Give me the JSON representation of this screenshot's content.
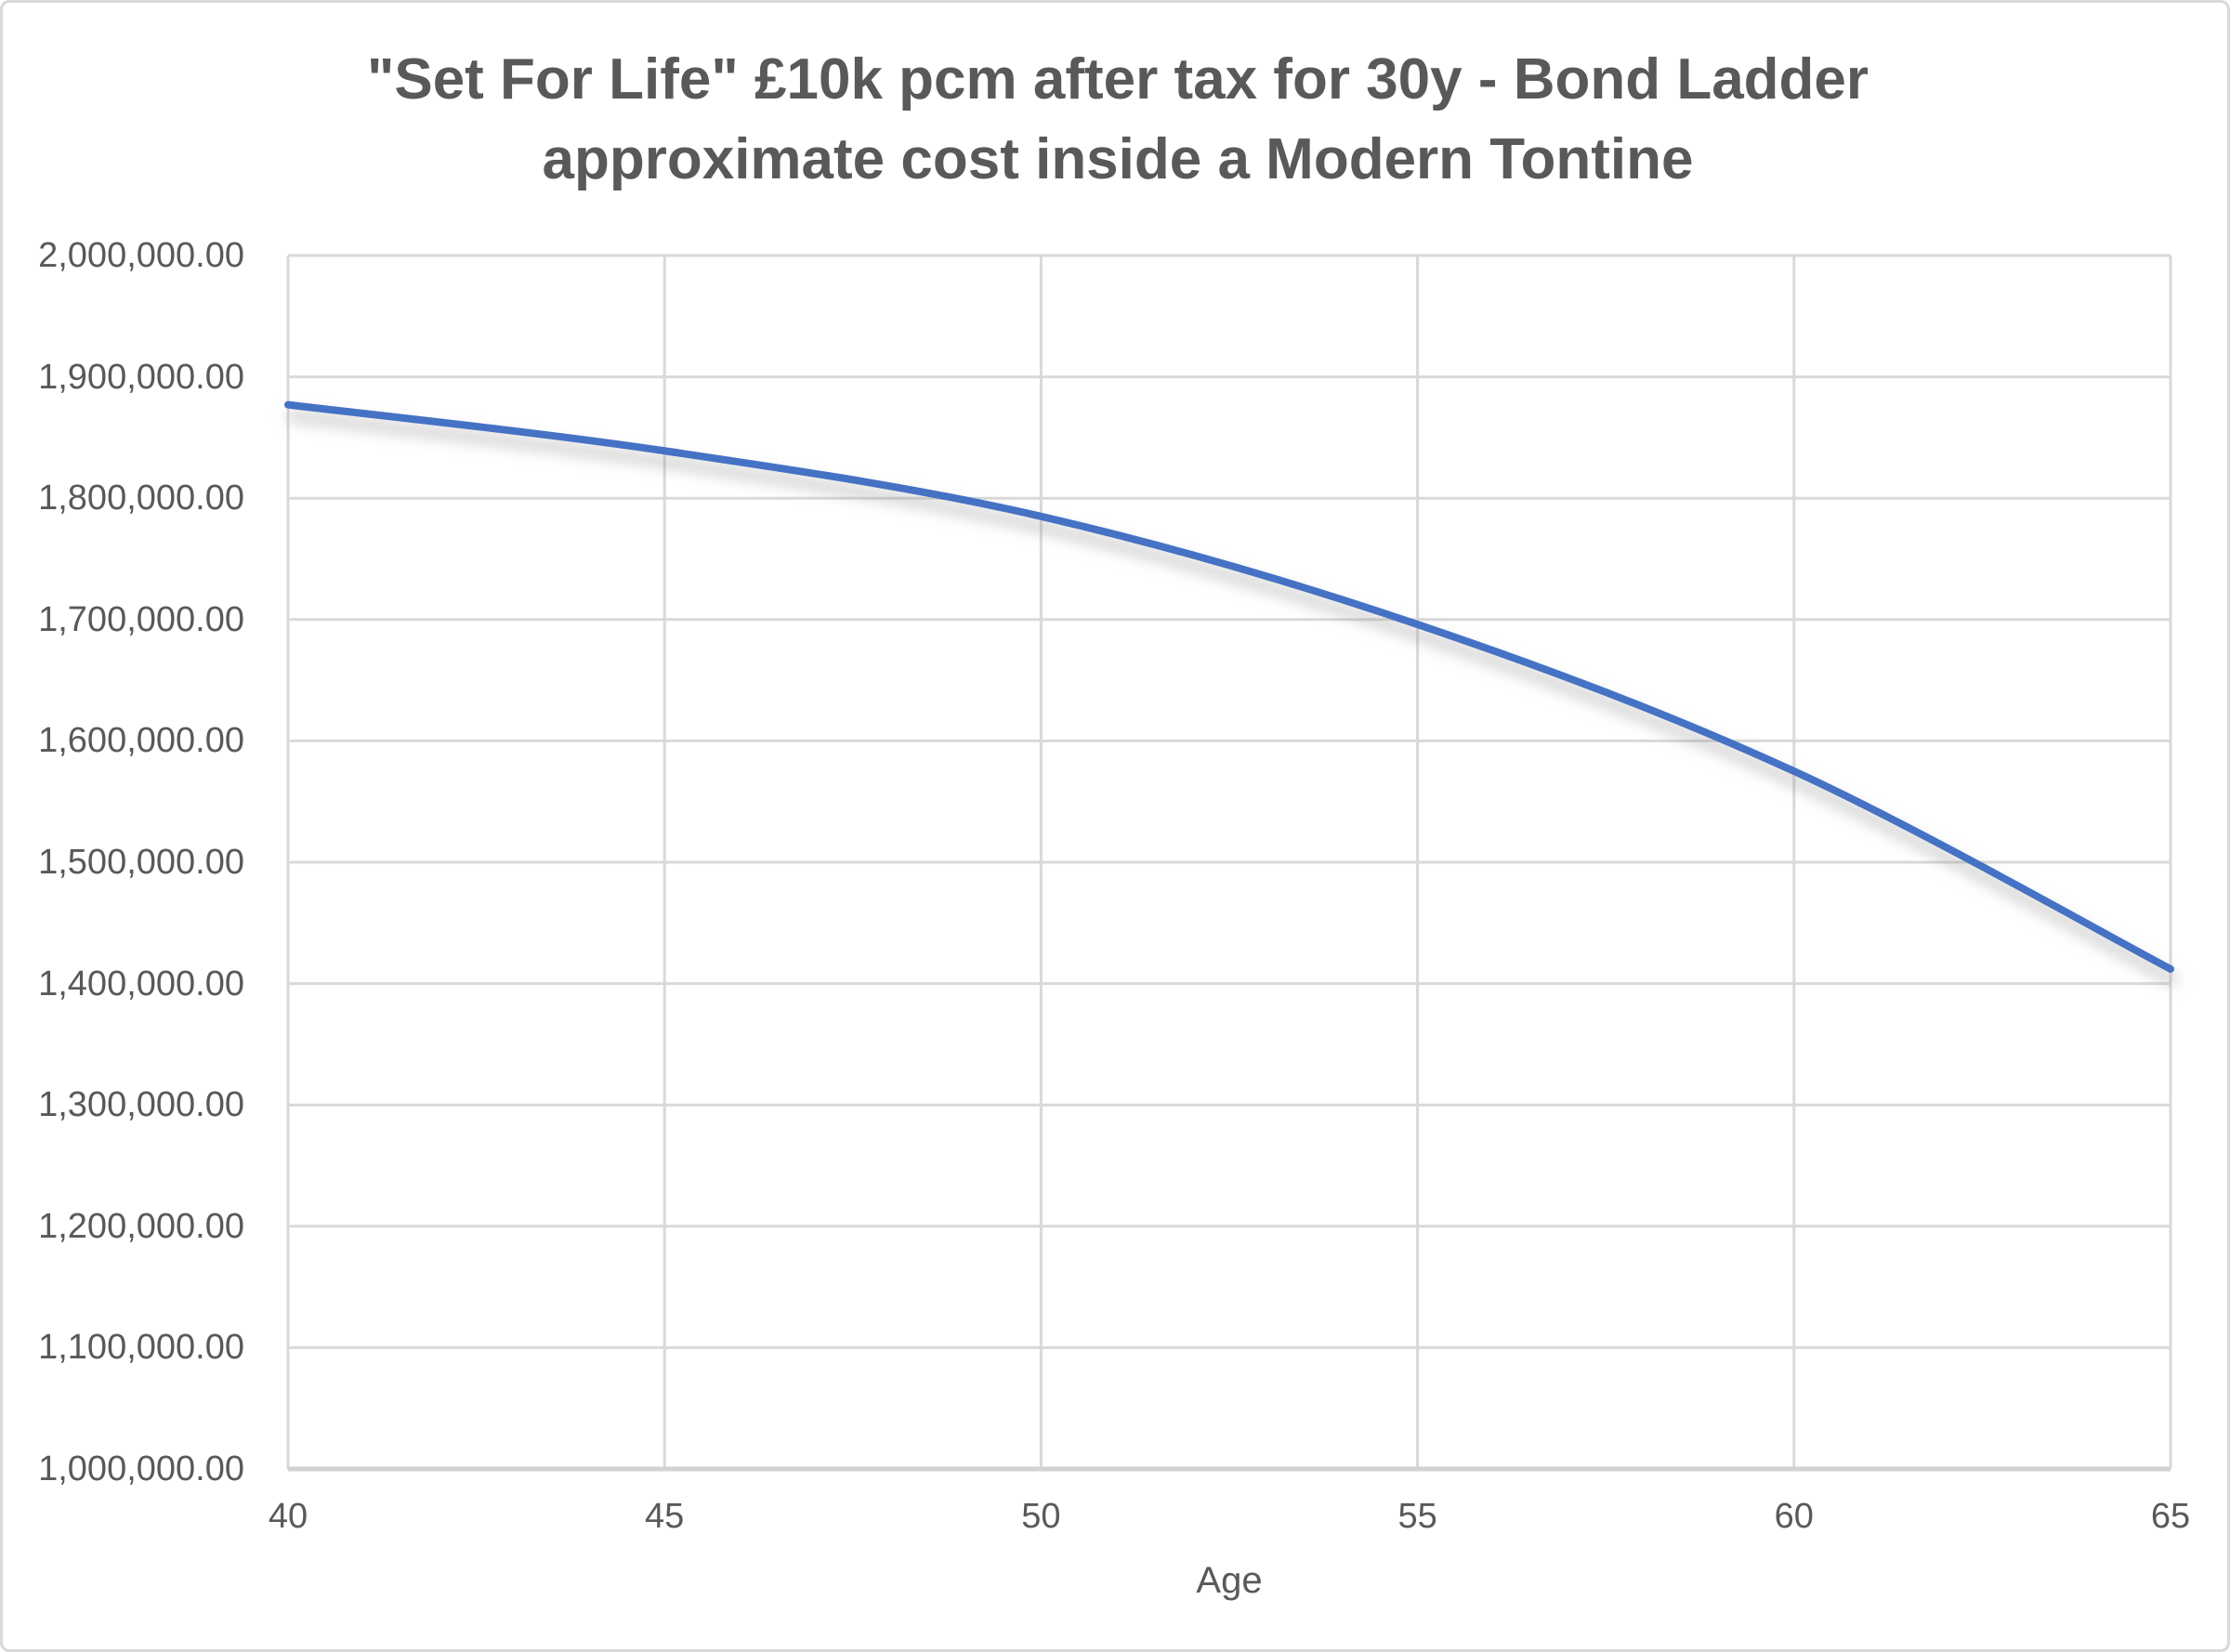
{
  "header": {
    "title_line1": "\"Set For Life\" £10k pcm after tax for 30y - Bond Ladder",
    "title_line2": "approximate cost inside a Modern Tontine"
  },
  "colors": {
    "line": "#4472C4",
    "gridline": "#d9d9d9",
    "axis": "#d2d2d2",
    "text": "#595959",
    "shadow": "#7f7f7f"
  },
  "chart_data": {
    "type": "line",
    "title": "\"Set For Life\" £10k pcm after tax for 30y - Bond Ladder approximate cost inside a Modern Tontine",
    "xlabel": "Age",
    "ylabel": "",
    "x": [
      40,
      45,
      50,
      55,
      60,
      65
    ],
    "values": [
      1877000,
      1839000,
      1785000,
      1696000,
      1575000,
      1412000
    ],
    "xlim": [
      40,
      65
    ],
    "ylim": [
      1000000,
      2000000
    ],
    "y_tick_step": 100000,
    "y_tick_labels_top_to_bottom": [
      "2,000,000.00",
      "1,900,000.00",
      "1,800,000.00",
      "1,700,000.00",
      "1,600,000.00",
      "1,500,000.00",
      "1,400,000.00",
      "1,300,000.00",
      "1,200,000.00",
      "1,100,000.00",
      "1,000,000.00"
    ],
    "x_tick_labels": [
      "40",
      "45",
      "50",
      "55",
      "60",
      "65"
    ],
    "grid": true,
    "legend": "none",
    "smooth": true,
    "line_color": "#4472C4"
  }
}
